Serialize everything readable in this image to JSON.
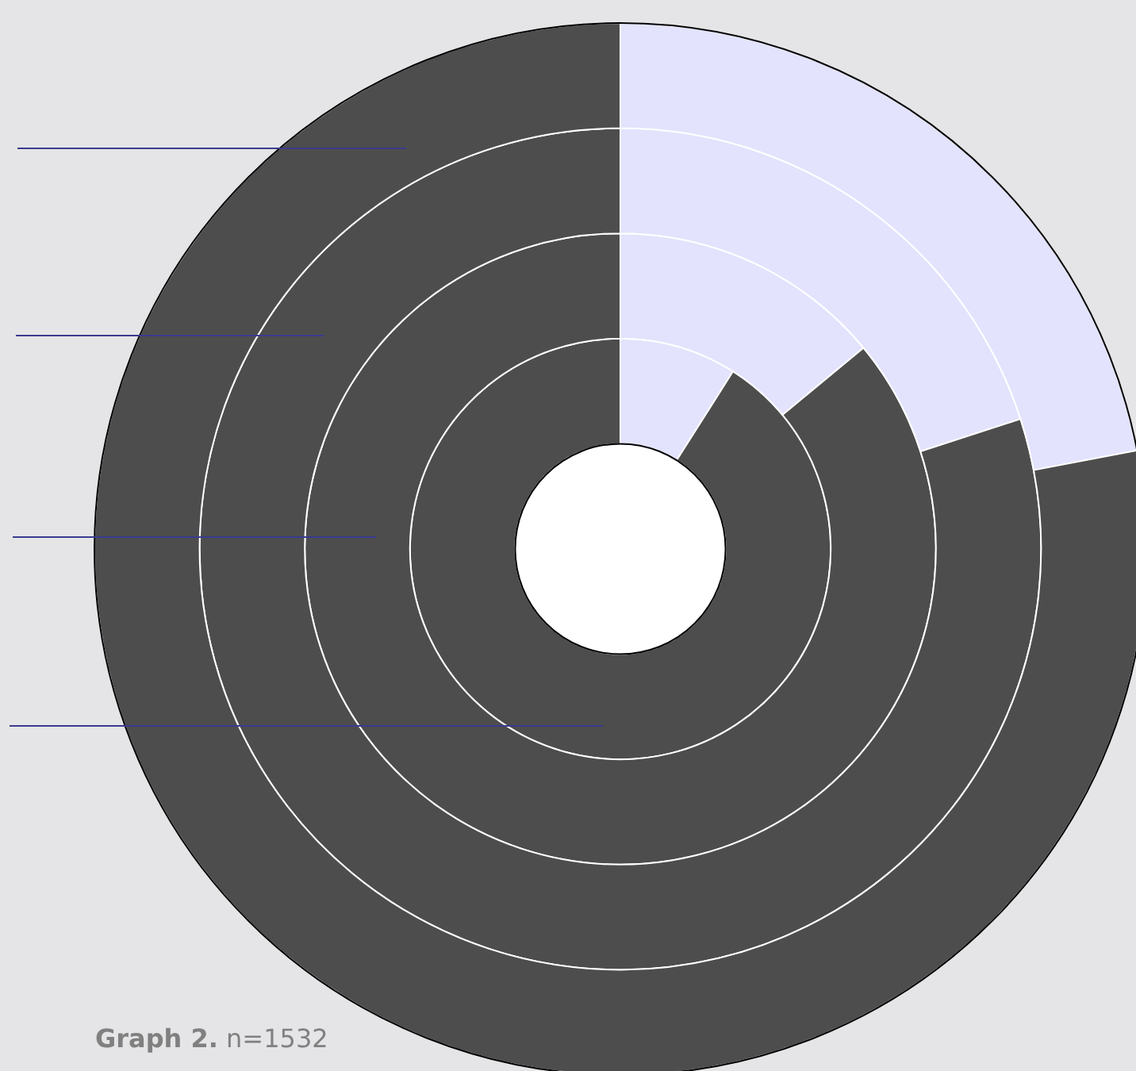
{
  "chart_data": {
    "type": "donut",
    "categories": [
      null,
      null
    ],
    "series": [
      {
        "values": [
          9,
          91
        ],
        "colors": [
          "#e3e3fd",
          "#4d4d4d"
        ]
      },
      {
        "values": [
          14,
          86
        ],
        "colors": [
          "#e3e3fd",
          "#4d4d4d"
        ]
      },
      {
        "values": [
          20,
          80
        ],
        "colors": [
          "#e3e3fd",
          "#4d4d4d"
        ]
      },
      {
        "values": [
          22,
          78
        ],
        "colors": [
          "#e3e3fd",
          "#4d4d4d"
        ]
      }
    ],
    "legend": false,
    "annotations": [
      "Graph 2.",
      "n=1532"
    ]
  }
}
